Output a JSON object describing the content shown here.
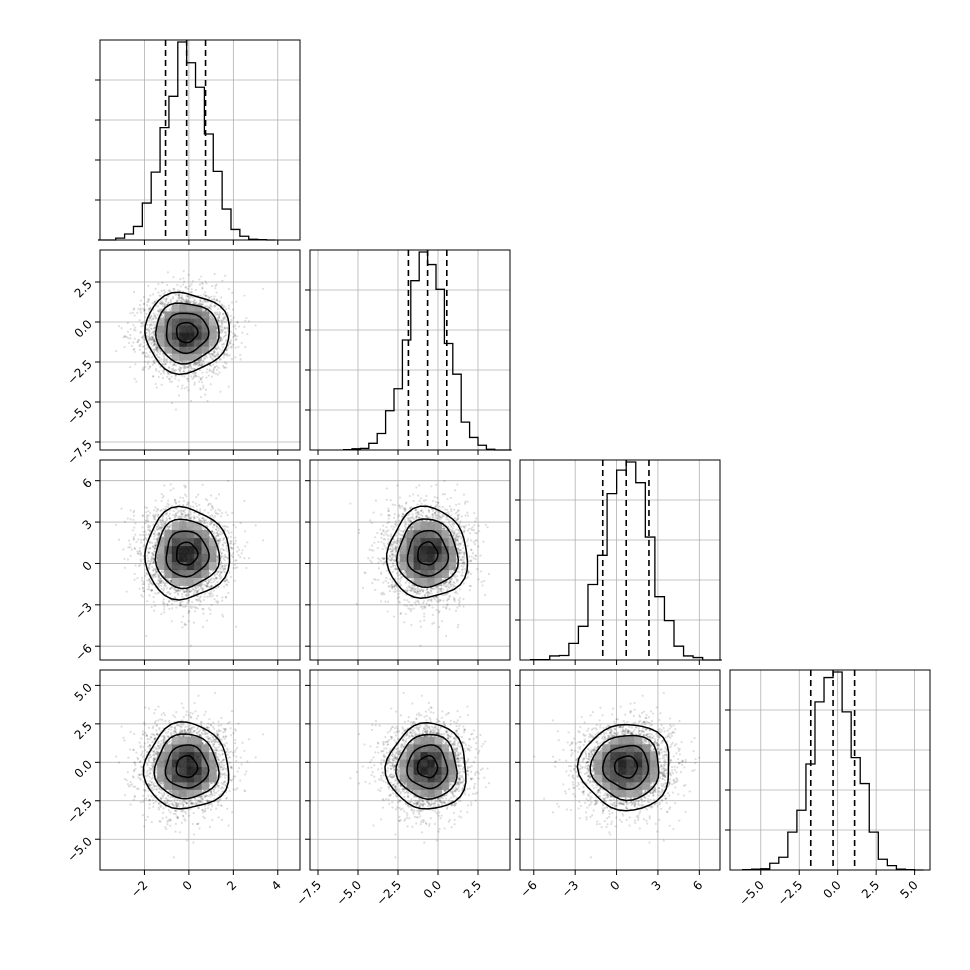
{
  "chart_data": {
    "type": "corner",
    "parameters": [
      {
        "index": 0,
        "mean": -0.1,
        "sd": 0.95,
        "range": [
          -4,
          5
        ],
        "ticks": [
          -2,
          0,
          2,
          4
        ],
        "tick_labels": [
          "−2",
          "0",
          "2",
          "4"
        ],
        "quantiles": [
          -1.05,
          -0.1,
          0.75
        ]
      },
      {
        "index": 1,
        "mean": -0.65,
        "sd": 1.25,
        "range": [
          -8,
          4.5
        ],
        "ticks": [
          -7.5,
          -5.0,
          -2.5,
          0.0,
          2.5
        ],
        "tick_labels": [
          "−7.5",
          "−5.0",
          "−2.5",
          "0.0",
          "2.5"
        ],
        "quantiles": [
          -1.85,
          -0.65,
          0.55
        ]
      },
      {
        "index": 2,
        "mean": 0.7,
        "sd": 1.65,
        "range": [
          -7,
          7.5
        ],
        "ticks": [
          -6,
          -3,
          0,
          3,
          6
        ],
        "tick_labels": [
          "−6",
          "−3",
          "0",
          "3",
          "6"
        ],
        "quantiles": [
          -1.0,
          0.7,
          2.35
        ]
      },
      {
        "index": 3,
        "mean": -0.3,
        "sd": 1.4,
        "range": [
          -7,
          6
        ],
        "ticks": [
          -5.0,
          -2.5,
          0.0,
          2.5,
          5.0
        ],
        "tick_labels": [
          "−5.0",
          "−2.5",
          "0.0",
          "2.5",
          "5.0"
        ],
        "quantiles": [
          -1.75,
          -0.3,
          1.1
        ]
      }
    ],
    "histogram_bins": 20,
    "quantile_levels": [
      0.16,
      0.5,
      0.84
    ],
    "contour_levels_sigma": [
      0.5,
      1.0,
      1.5,
      2.0
    ],
    "scatter_color": "#000000",
    "grid": true
  }
}
